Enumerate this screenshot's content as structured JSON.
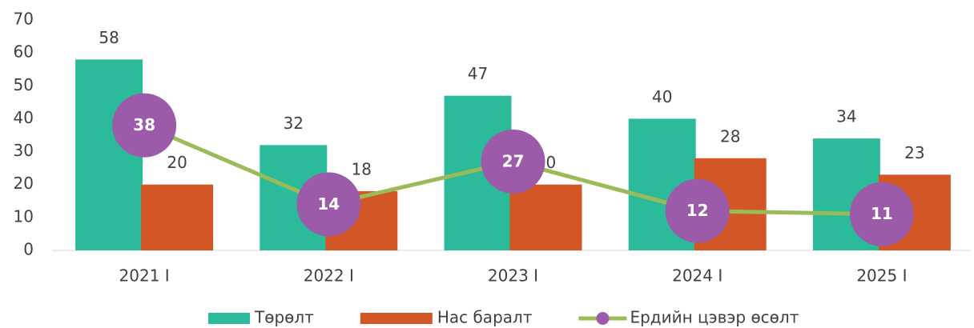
{
  "chart_data": {
    "type": "bar_line",
    "categories": [
      "2021 I",
      "2022 I",
      "2023 I",
      "2024 I",
      "2025 I"
    ],
    "series": [
      {
        "name": "Төрөлт",
        "type": "bar",
        "color": "#2bbb9b",
        "values": [
          58,
          32,
          47,
          40,
          34
        ]
      },
      {
        "name": "Нас баралт",
        "type": "bar",
        "color": "#d35726",
        "values": [
          20,
          18,
          20,
          28,
          23
        ]
      },
      {
        "name": "Ердийн цэвэр өсөлт",
        "type": "line",
        "color": "#9bbb59",
        "marker_color": "#9b5ba8",
        "values": [
          38,
          14,
          27,
          12,
          11
        ]
      }
    ],
    "ylim": [
      0,
      70
    ],
    "yticks": [
      0,
      10,
      20,
      30,
      40,
      50,
      60,
      70
    ],
    "grid": false
  }
}
